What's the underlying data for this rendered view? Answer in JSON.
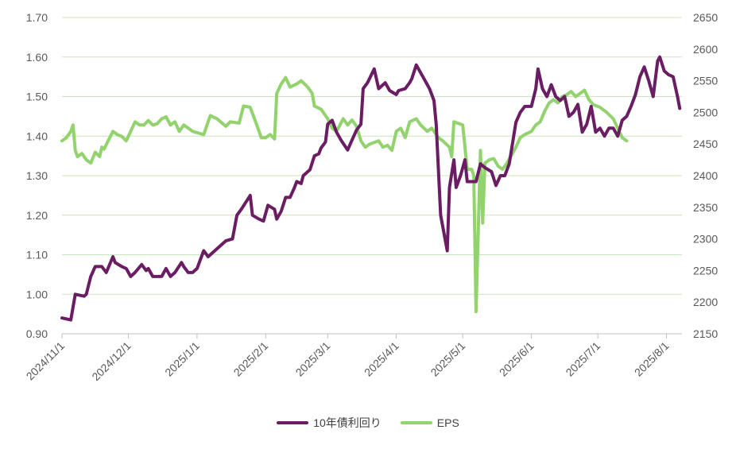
{
  "chart_data": {
    "type": "line",
    "x_ticks": [
      "2024/11/1",
      "2024/12/1",
      "2025/1/1",
      "2025/2/1",
      "2025/3/1",
      "2025/4/1",
      "2025/5/1",
      "2025/6/1",
      "2025/7/1",
      "2025/8/1"
    ],
    "y_left": {
      "ticks": [
        "0.90",
        "1.00",
        "1.10",
        "1.20",
        "1.30",
        "1.40",
        "1.50",
        "1.60",
        "1.70"
      ],
      "range": [
        0.9,
        1.7
      ]
    },
    "y_right": {
      "ticks": [
        "2150",
        "2200",
        "2250",
        "2300",
        "2350",
        "2400",
        "2450",
        "2500",
        "2550",
        "2600",
        "2650"
      ],
      "range": [
        2150,
        2650
      ]
    },
    "grid": true,
    "legend_position": "bottom",
    "series": [
      {
        "name": "10年債利回り",
        "axis": "left",
        "color": "#6b1d63",
        "points": [
          [
            "2024/11/1",
            0.94
          ],
          [
            "2024/11/5",
            0.935
          ],
          [
            "2024/11/7",
            1.0
          ],
          [
            "2024/11/11",
            0.995
          ],
          [
            "2024/11/12",
            1.0
          ],
          [
            "2024/11/14",
            1.045
          ],
          [
            "2024/11/16",
            1.07
          ],
          [
            "2024/11/19",
            1.07
          ],
          [
            "2024/11/21",
            1.055
          ],
          [
            "2024/11/24",
            1.095
          ],
          [
            "2024/11/25",
            1.08
          ],
          [
            "2024/11/28",
            1.07
          ],
          [
            "2024/11/30",
            1.065
          ],
          [
            "2024/12/2",
            1.045
          ],
          [
            "2024/12/4",
            1.055
          ],
          [
            "2024/12/7",
            1.075
          ],
          [
            "2024/12/9",
            1.06
          ],
          [
            "2024/12/10",
            1.065
          ],
          [
            "2024/12/12",
            1.045
          ],
          [
            "2024/12/16",
            1.045
          ],
          [
            "2024/12/18",
            1.065
          ],
          [
            "2024/12/20",
            1.045
          ],
          [
            "2024/12/22",
            1.055
          ],
          [
            "2024/12/25",
            1.08
          ],
          [
            "2024/12/26",
            1.07
          ],
          [
            "2024/12/28",
            1.055
          ],
          [
            "2024/12/30",
            1.055
          ],
          [
            "2025/1/1",
            1.065
          ],
          [
            "2025/1/4",
            1.11
          ],
          [
            "2025/1/6",
            1.095
          ],
          [
            "2025/1/10",
            1.115
          ],
          [
            "2025/1/14",
            1.135
          ],
          [
            "2025/1/17",
            1.14
          ],
          [
            "2025/1/18",
            1.17
          ],
          [
            "2025/1/19",
            1.2
          ],
          [
            "2025/1/21",
            1.215
          ],
          [
            "2025/1/25",
            1.25
          ],
          [
            "2025/1/26",
            1.2
          ],
          [
            "2025/1/29",
            1.19
          ],
          [
            "2025/1/31",
            1.185
          ],
          [
            "2025/2/2",
            1.225
          ],
          [
            "2025/2/5",
            1.215
          ],
          [
            "2025/2/6",
            1.19
          ],
          [
            "2025/2/8",
            1.21
          ],
          [
            "2025/2/10",
            1.245
          ],
          [
            "2025/2/12",
            1.245
          ],
          [
            "2025/2/14",
            1.27
          ],
          [
            "2025/2/15",
            1.285
          ],
          [
            "2025/2/17",
            1.28
          ],
          [
            "2025/2/18",
            1.3
          ],
          [
            "2025/2/21",
            1.315
          ],
          [
            "2025/2/23",
            1.35
          ],
          [
            "2025/2/25",
            1.355
          ],
          [
            "2025/2/26",
            1.37
          ],
          [
            "2025/2/28",
            1.385
          ],
          [
            "2025/3/1",
            1.43
          ],
          [
            "2025/3/3",
            1.44
          ],
          [
            "2025/3/5",
            1.41
          ],
          [
            "2025/3/7",
            1.39
          ],
          [
            "2025/3/10",
            1.365
          ],
          [
            "2025/3/12",
            1.39
          ],
          [
            "2025/3/14",
            1.415
          ],
          [
            "2025/3/16",
            1.43
          ],
          [
            "2025/3/17",
            1.52
          ],
          [
            "2025/3/19",
            1.535
          ],
          [
            "2025/3/22",
            1.57
          ],
          [
            "2025/3/24",
            1.52
          ],
          [
            "2025/3/27",
            1.535
          ],
          [
            "2025/3/29",
            1.515
          ],
          [
            "2025/4/1",
            1.505
          ],
          [
            "2025/4/2",
            1.515
          ],
          [
            "2025/4/5",
            1.52
          ],
          [
            "2025/4/7",
            1.535
          ],
          [
            "2025/4/8",
            1.545
          ],
          [
            "2025/4/10",
            1.58
          ],
          [
            "2025/4/13",
            1.55
          ],
          [
            "2025/4/16",
            1.52
          ],
          [
            "2025/4/18",
            1.49
          ],
          [
            "2025/4/19",
            1.43
          ],
          [
            "2025/4/21",
            1.2
          ],
          [
            "2025/4/24",
            1.11
          ],
          [
            "2025/4/25",
            1.27
          ],
          [
            "2025/4/27",
            1.34
          ],
          [
            "2025/4/28",
            1.27
          ],
          [
            "2025/4/30",
            1.3
          ],
          [
            "2025/5/2",
            1.34
          ],
          [
            "2025/5/3",
            1.285
          ],
          [
            "2025/5/5",
            1.285
          ],
          [
            "2025/5/7",
            1.285
          ],
          [
            "2025/5/9",
            1.33
          ],
          [
            "2025/5/11",
            1.32
          ],
          [
            "2025/5/14",
            1.31
          ],
          [
            "2025/5/16",
            1.275
          ],
          [
            "2025/5/18",
            1.3
          ],
          [
            "2025/5/20",
            1.3
          ],
          [
            "2025/5/22",
            1.33
          ],
          [
            "2025/5/24",
            1.4
          ],
          [
            "2025/5/25",
            1.435
          ],
          [
            "2025/5/27",
            1.46
          ],
          [
            "2025/5/29",
            1.475
          ],
          [
            "2025/6/1",
            1.475
          ],
          [
            "2025/6/3",
            1.52
          ],
          [
            "2025/6/4",
            1.57
          ],
          [
            "2025/6/6",
            1.52
          ],
          [
            "2025/6/8",
            1.5
          ],
          [
            "2025/6/10",
            1.53
          ],
          [
            "2025/6/12",
            1.5
          ],
          [
            "2025/6/14",
            1.49
          ],
          [
            "2025/6/16",
            1.5
          ],
          [
            "2025/6/18",
            1.45
          ],
          [
            "2025/6/20",
            1.46
          ],
          [
            "2025/6/22",
            1.48
          ],
          [
            "2025/6/24",
            1.41
          ],
          [
            "2025/6/26",
            1.43
          ],
          [
            "2025/6/28",
            1.475
          ],
          [
            "2025/6/30",
            1.41
          ],
          [
            "2025/7/2",
            1.42
          ],
          [
            "2025/7/4",
            1.4
          ],
          [
            "2025/7/6",
            1.42
          ],
          [
            "2025/7/8",
            1.42
          ],
          [
            "2025/7/10",
            1.4
          ],
          [
            "2025/7/12",
            1.44
          ],
          [
            "2025/7/14",
            1.45
          ],
          [
            "2025/7/16",
            1.475
          ],
          [
            "2025/7/18",
            1.505
          ],
          [
            "2025/7/20",
            1.55
          ],
          [
            "2025/7/22",
            1.575
          ],
          [
            "2025/7/24",
            1.54
          ],
          [
            "2025/7/26",
            1.5
          ],
          [
            "2025/7/28",
            1.59
          ],
          [
            "2025/7/29",
            1.6
          ],
          [
            "2025/7/31",
            1.565
          ],
          [
            "2025/8/2",
            1.555
          ],
          [
            "2025/8/4",
            1.55
          ],
          [
            "2025/8/6",
            1.5
          ],
          [
            "2025/8/7",
            1.47
          ]
        ]
      },
      {
        "name": "EPS",
        "axis": "right",
        "color": "#92d36e",
        "points": [
          [
            "2024/11/1",
            2455
          ],
          [
            "2024/11/3",
            2460
          ],
          [
            "2024/11/5",
            2470
          ],
          [
            "2024/11/6",
            2480
          ],
          [
            "2024/11/7",
            2440
          ],
          [
            "2024/11/8",
            2430
          ],
          [
            "2024/11/10",
            2435
          ],
          [
            "2024/11/12",
            2425
          ],
          [
            "2024/11/14",
            2420
          ],
          [
            "2024/11/16",
            2437
          ],
          [
            "2024/11/18",
            2430
          ],
          [
            "2024/11/19",
            2445
          ],
          [
            "2024/11/20",
            2442
          ],
          [
            "2024/11/22",
            2456
          ],
          [
            "2024/11/24",
            2470
          ],
          [
            "2024/11/26",
            2465
          ],
          [
            "2024/11/28",
            2462
          ],
          [
            "2024/11/30",
            2455
          ],
          [
            "2024/12/2",
            2470
          ],
          [
            "2024/12/4",
            2485
          ],
          [
            "2024/12/6",
            2480
          ],
          [
            "2024/12/8",
            2480
          ],
          [
            "2024/12/10",
            2487
          ],
          [
            "2024/12/12",
            2480
          ],
          [
            "2024/12/14",
            2482
          ],
          [
            "2024/12/16",
            2490
          ],
          [
            "2024/12/18",
            2493
          ],
          [
            "2024/12/20",
            2480
          ],
          [
            "2024/12/22",
            2485
          ],
          [
            "2024/12/24",
            2470
          ],
          [
            "2024/12/26",
            2480
          ],
          [
            "2024/12/28",
            2475
          ],
          [
            "2024/12/30",
            2470
          ],
          [
            "2025/1/1",
            2468
          ],
          [
            "2025/1/4",
            2465
          ],
          [
            "2025/1/7",
            2495
          ],
          [
            "2025/1/10",
            2490
          ],
          [
            "2025/1/14",
            2478
          ],
          [
            "2025/1/16",
            2485
          ],
          [
            "2025/1/20",
            2483
          ],
          [
            "2025/1/22",
            2510
          ],
          [
            "2025/1/25",
            2508
          ],
          [
            "2025/1/28",
            2480
          ],
          [
            "2025/1/30",
            2460
          ],
          [
            "2025/2/1",
            2460
          ],
          [
            "2025/2/3",
            2465
          ],
          [
            "2025/2/5",
            2458
          ],
          [
            "2025/2/6",
            2530
          ],
          [
            "2025/2/8",
            2545
          ],
          [
            "2025/2/10",
            2555
          ],
          [
            "2025/2/12",
            2540
          ],
          [
            "2025/2/15",
            2545
          ],
          [
            "2025/2/17",
            2550
          ],
          [
            "2025/2/20",
            2540
          ],
          [
            "2025/2/22",
            2530
          ],
          [
            "2025/2/23",
            2510
          ],
          [
            "2025/2/26",
            2505
          ],
          [
            "2025/3/1",
            2490
          ],
          [
            "2025/3/3",
            2475
          ],
          [
            "2025/3/5",
            2470
          ],
          [
            "2025/3/8",
            2490
          ],
          [
            "2025/3/10",
            2480
          ],
          [
            "2025/3/12",
            2488
          ],
          [
            "2025/3/14",
            2478
          ],
          [
            "2025/3/16",
            2455
          ],
          [
            "2025/3/18",
            2445
          ],
          [
            "2025/3/20",
            2450
          ],
          [
            "2025/3/24",
            2455
          ],
          [
            "2025/3/26",
            2445
          ],
          [
            "2025/3/28",
            2448
          ],
          [
            "2025/3/30",
            2440
          ],
          [
            "2025/4/1",
            2470
          ],
          [
            "2025/4/3",
            2475
          ],
          [
            "2025/4/5",
            2460
          ],
          [
            "2025/4/7",
            2485
          ],
          [
            "2025/4/10",
            2490
          ],
          [
            "2025/4/12",
            2480
          ],
          [
            "2025/4/15",
            2470
          ],
          [
            "2025/4/17",
            2475
          ],
          [
            "2025/4/20",
            2460
          ],
          [
            "2025/4/22",
            2455
          ],
          [
            "2025/4/25",
            2445
          ],
          [
            "2025/4/26",
            2430
          ],
          [
            "2025/4/27",
            2485
          ],
          [
            "2025/5/1",
            2480
          ],
          [
            "2025/5/3",
            2410
          ],
          [
            "2025/5/5",
            2410
          ],
          [
            "2025/5/6",
            2400
          ],
          [
            "2025/5/7",
            2185
          ],
          [
            "2025/5/9",
            2440
          ],
          [
            "2025/5/10",
            2325
          ],
          [
            "2025/5/11",
            2420
          ],
          [
            "2025/5/13",
            2425
          ],
          [
            "2025/5/15",
            2427
          ],
          [
            "2025/5/17",
            2415
          ],
          [
            "2025/5/19",
            2410
          ],
          [
            "2025/5/21",
            2420
          ],
          [
            "2025/5/23",
            2432
          ],
          [
            "2025/5/25",
            2445
          ],
          [
            "2025/5/27",
            2460
          ],
          [
            "2025/5/29",
            2465
          ],
          [
            "2025/6/1",
            2470
          ],
          [
            "2025/6/3",
            2480
          ],
          [
            "2025/6/5",
            2485
          ],
          [
            "2025/6/7",
            2502
          ],
          [
            "2025/6/9",
            2515
          ],
          [
            "2025/6/11",
            2520
          ],
          [
            "2025/6/13",
            2515
          ],
          [
            "2025/6/15",
            2525
          ],
          [
            "2025/6/17",
            2528
          ],
          [
            "2025/6/19",
            2533
          ],
          [
            "2025/6/21",
            2525
          ],
          [
            "2025/6/23",
            2530
          ],
          [
            "2025/6/25",
            2535
          ],
          [
            "2025/6/27",
            2520
          ],
          [
            "2025/6/29",
            2512
          ],
          [
            "2025/7/2",
            2508
          ],
          [
            "2025/7/5",
            2500
          ],
          [
            "2025/7/8",
            2490
          ],
          [
            "2025/7/10",
            2475
          ],
          [
            "2025/7/12",
            2460
          ],
          [
            "2025/7/14",
            2455
          ]
        ]
      }
    ]
  }
}
